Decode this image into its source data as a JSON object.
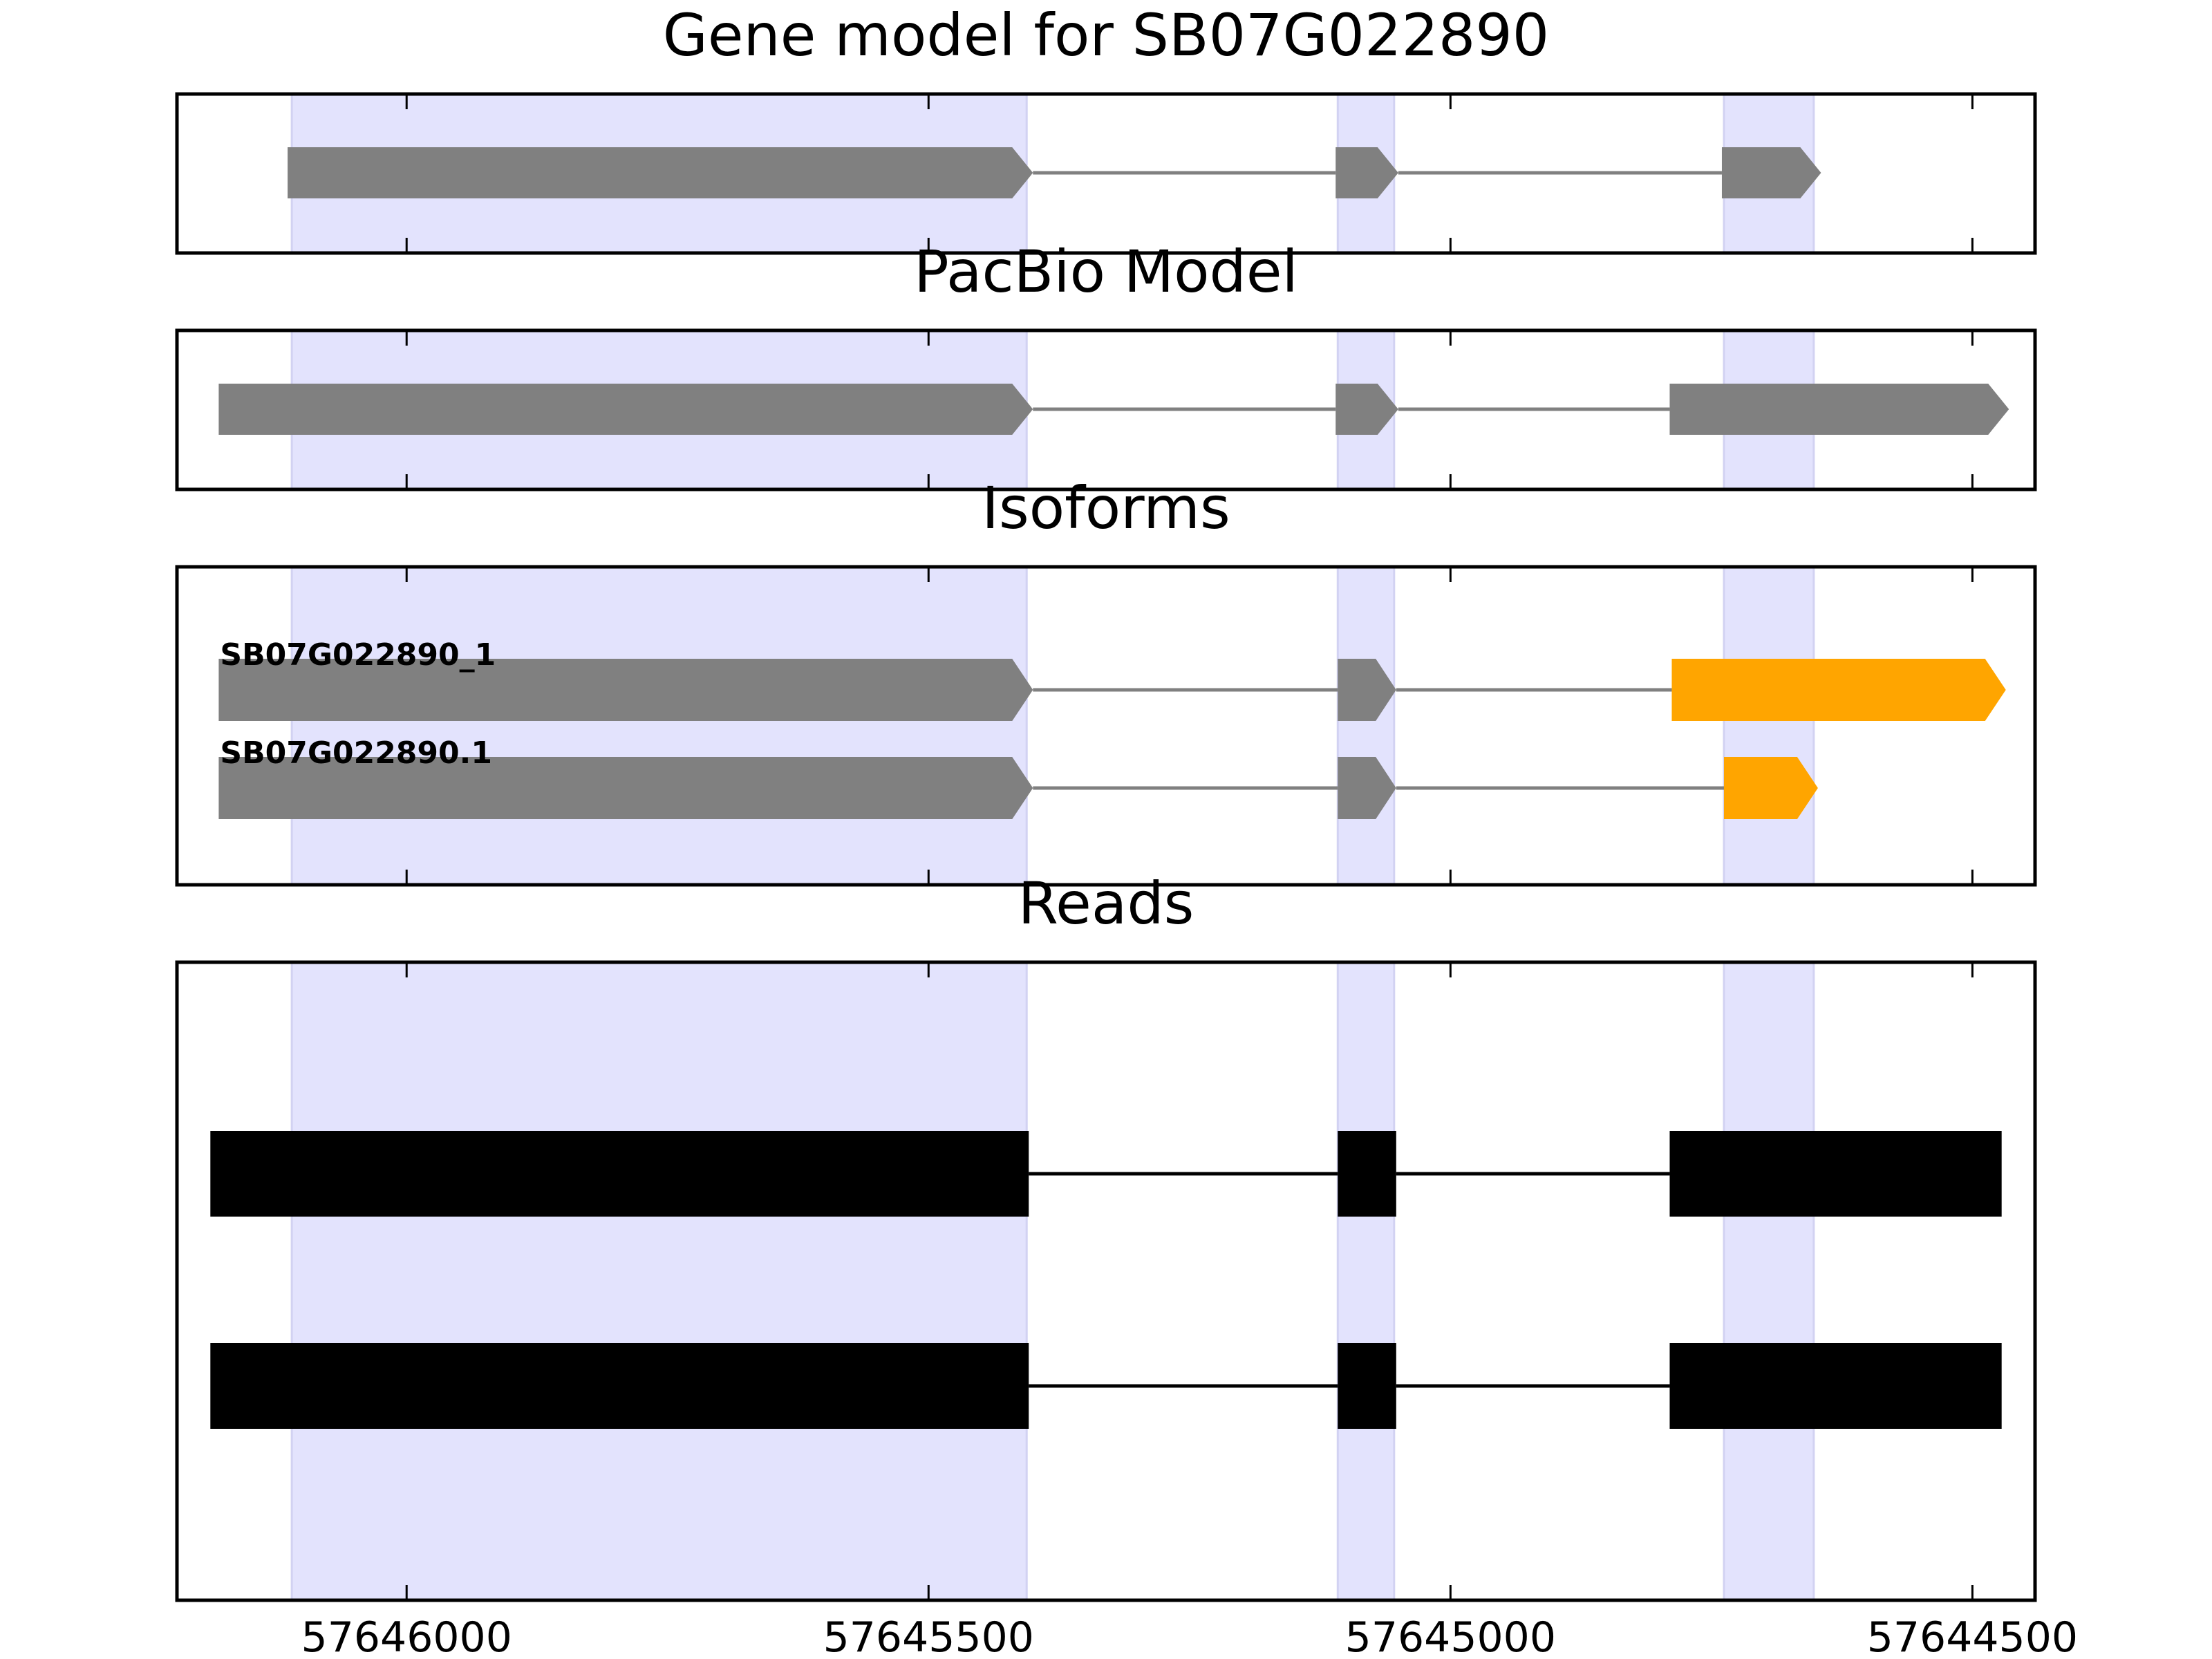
{
  "chart_data": {
    "type": "gene_structure",
    "x_axis": {
      "direction": "reversed",
      "range": [
        57646220,
        57644440
      ],
      "ticks": [
        57646000,
        57645500,
        57645000,
        57644500
      ],
      "tick_labels": [
        "57646000",
        "57645500",
        "57645000",
        "57644500"
      ]
    },
    "exon_highlights": [
      [
        57646110,
        57645406
      ],
      [
        57645108,
        57645054
      ],
      [
        57644738,
        57644652
      ]
    ],
    "colors": {
      "highlight": "#e3e3fd",
      "highlight_edge": "#d2d2f2",
      "exon": "#808080",
      "intron": "#808080",
      "isoform_utr": "#ffa500",
      "read": "#000000"
    },
    "panels": [
      {
        "title": "Gene model for SB07G022890",
        "kind": "model",
        "tracks": [
          {
            "label": "",
            "exons": [
              [
                57646114,
                57645400
              ],
              [
                57645110,
                57645050
              ],
              [
                57644740,
                57644645
              ]
            ],
            "colors": [
              "#808080",
              "#808080",
              "#808080"
            ]
          }
        ]
      },
      {
        "title": "PacBio Model",
        "kind": "model",
        "tracks": [
          {
            "label": "",
            "exons": [
              [
                57646180,
                57645400
              ],
              [
                57645110,
                57645050
              ],
              [
                57644790,
                57644465
              ]
            ],
            "colors": [
              "#808080",
              "#808080",
              "#808080"
            ]
          }
        ]
      },
      {
        "title": "Isoforms",
        "kind": "isoforms",
        "tracks": [
          {
            "label": "SB07G022890_1",
            "exons": [
              [
                57646180,
                57645400
              ],
              [
                57645108,
                57645052
              ],
              [
                57644788,
                57644468
              ]
            ],
            "colors": [
              "#808080",
              "#808080",
              "#ffa500"
            ]
          },
          {
            "label": "SB07G022890.1",
            "exons": [
              [
                57646180,
                57645400
              ],
              [
                57645108,
                57645052
              ],
              [
                57644738,
                57644648
              ]
            ],
            "colors": [
              "#808080",
              "#808080",
              "#ffa500"
            ]
          }
        ]
      },
      {
        "title": "Reads",
        "kind": "reads",
        "tracks": [
          {
            "label": "",
            "exons": [
              [
                57646188,
                57645404
              ],
              [
                57645108,
                57645052
              ],
              [
                57644790,
                57644472
              ]
            ],
            "colors": [
              "#000000",
              "#000000",
              "#000000"
            ]
          },
          {
            "label": "",
            "exons": [
              [
                57646188,
                57645404
              ],
              [
                57645108,
                57645052
              ],
              [
                57644790,
                57644472
              ]
            ],
            "colors": [
              "#000000",
              "#000000",
              "#000000"
            ]
          }
        ]
      }
    ]
  }
}
